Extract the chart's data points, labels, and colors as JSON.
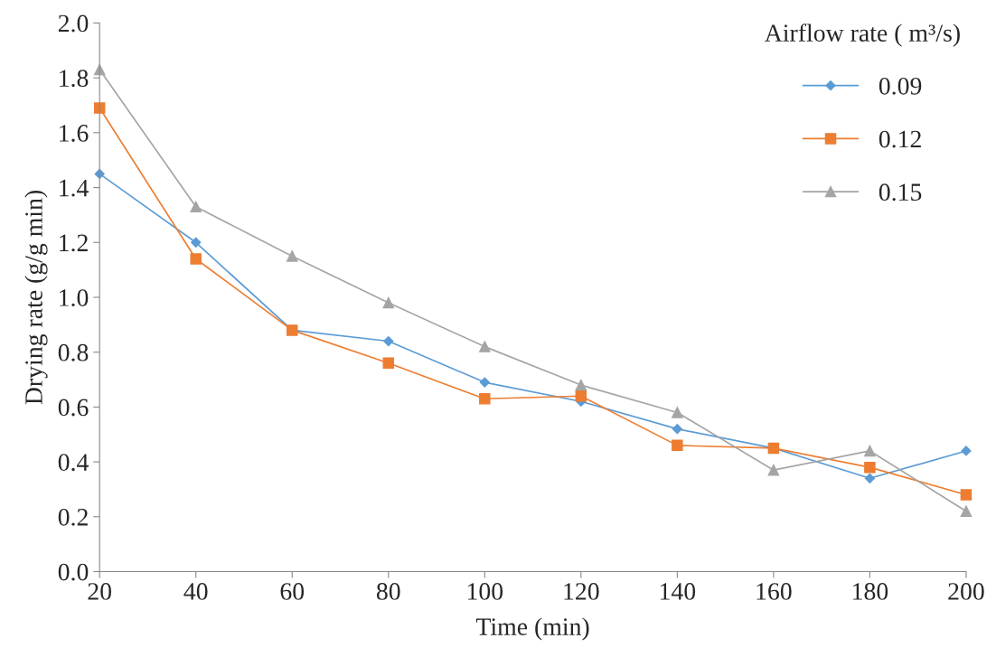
{
  "chart_data": {
    "type": "line",
    "xlabel": "Time (min)",
    "ylabel": "Drying rate (g/g min)",
    "legend_title": "Airflow rate ( m³/s)",
    "x": [
      20,
      40,
      60,
      80,
      100,
      120,
      140,
      160,
      180,
      200
    ],
    "series": [
      {
        "name": "0.09",
        "color": "#5b9bd5",
        "marker": "diamond",
        "values": [
          1.45,
          1.2,
          0.88,
          0.84,
          0.69,
          0.62,
          0.52,
          0.45,
          0.34,
          0.44
        ]
      },
      {
        "name": "0.12",
        "color": "#ed7d31",
        "marker": "square",
        "values": [
          1.69,
          1.14,
          0.88,
          0.76,
          0.63,
          0.64,
          0.46,
          0.45,
          0.38,
          0.28
        ]
      },
      {
        "name": "0.15",
        "color": "#a5a5a5",
        "marker": "triangle",
        "values": [
          1.83,
          1.33,
          1.15,
          0.98,
          0.82,
          0.68,
          0.58,
          0.37,
          0.44,
          0.22
        ]
      }
    ],
    "xlim": [
      20,
      200
    ],
    "xticks": [
      20,
      40,
      60,
      80,
      100,
      120,
      140,
      160,
      180,
      200
    ],
    "ylim": [
      0,
      2.0
    ],
    "yticks": [
      {
        "value": 0,
        "label": "0.0"
      },
      {
        "value": 0.2,
        "label": "0.2"
      },
      {
        "value": 0.4,
        "label": "0.4"
      },
      {
        "value": 0.6,
        "label": "0.6"
      },
      {
        "value": 0.8,
        "label": "0.8"
      },
      {
        "value": 1.0,
        "label": "1.0"
      },
      {
        "value": 1.2,
        "label": "1.2"
      },
      {
        "value": 1.4,
        "label": "1.4"
      },
      {
        "value": 1.6,
        "label": "1.6"
      },
      {
        "value": 1.8,
        "label": "1.8"
      },
      {
        "value": 2.0,
        "label": "2.0"
      }
    ],
    "grid": false,
    "legend": "top right",
    "line_style": "solid"
  }
}
